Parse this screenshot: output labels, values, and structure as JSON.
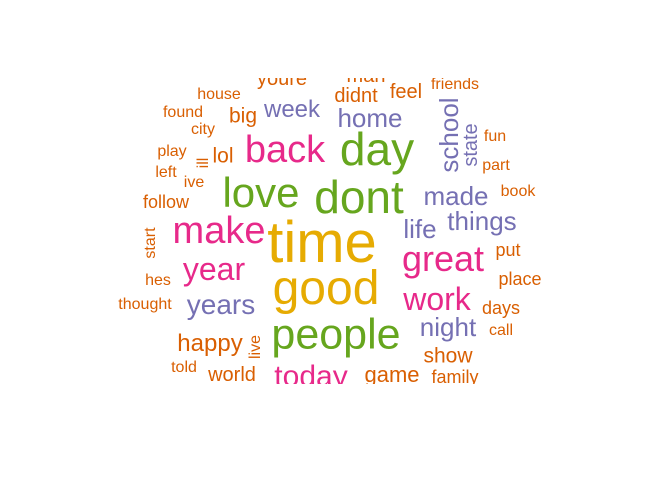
{
  "palette": {
    "orange": "#d95f02",
    "purple": "#7570b3",
    "pink": "#e7298a",
    "green": "#66a61e",
    "gold": "#e6ab02"
  },
  "words": {
    "time": "time",
    "good": "good",
    "dont": "dont",
    "people": "people",
    "day": "day",
    "love": "love",
    "back": "back",
    "make": "make",
    "great": "great",
    "year": "year",
    "work": "work",
    "today": "today",
    "years": "years",
    "things": "things",
    "made": "made",
    "night": "night",
    "life": "life",
    "home": "home",
    "week": "week",
    "school": "school",
    "happy": "happy",
    "state": "state",
    "show": "show",
    "game": "game",
    "didnt": "didnt",
    "youre": "youre",
    "man": "man",
    "feel": "feel",
    "big": "big",
    "lol": "lol",
    "world": "world",
    "friends": "friends",
    "house": "house",
    "found": "found",
    "city": "city",
    "play": "play",
    "ill": "ill",
    "left": "left",
    "ive": "ive",
    "follow": "follow",
    "start": "start",
    "hes": "hes",
    "thought": "thought",
    "told": "told",
    "live": "live",
    "fun": "fun",
    "part": "part",
    "book": "book",
    "put": "put",
    "place": "place",
    "days": "days",
    "call": "call",
    "family": "family"
  }
}
